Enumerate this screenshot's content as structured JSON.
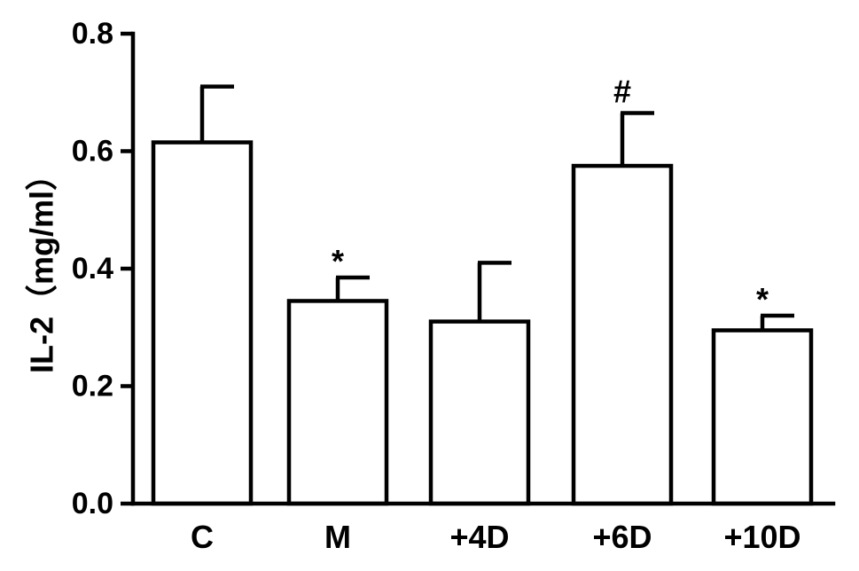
{
  "chart_data": {
    "type": "bar",
    "title": "",
    "xlabel": "",
    "ylabel": "IL-2（mg/ml）",
    "ylim": [
      0,
      0.8
    ],
    "yticks": [
      "0.0",
      "0.2",
      "0.4",
      "0.6",
      "0.8"
    ],
    "categories": [
      "C",
      "M",
      "+4D",
      "+6D",
      "+10D"
    ],
    "values": [
      0.615,
      0.345,
      0.31,
      0.575,
      0.295
    ],
    "errors": [
      0.095,
      0.04,
      0.1,
      0.09,
      0.025
    ],
    "annotations": [
      "",
      "*",
      "",
      "#",
      "*"
    ],
    "grid": false,
    "legend": "none"
  }
}
